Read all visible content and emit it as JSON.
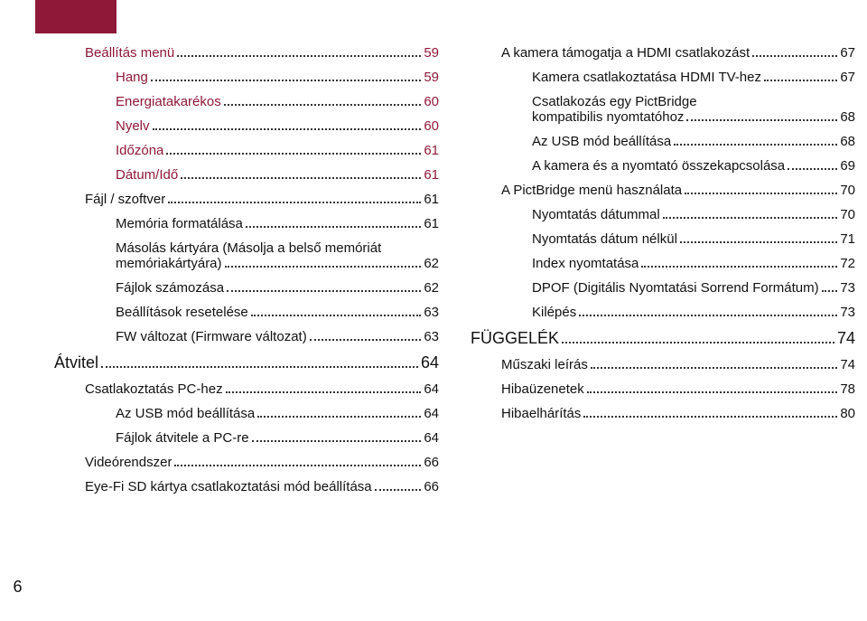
{
  "pageNumber": "6",
  "colors": {
    "accent": "#8f1838",
    "text": "#111111",
    "background": "#ffffff"
  },
  "toc": {
    "left": [
      {
        "level": 2,
        "title": "Beállítás menü",
        "page": "59",
        "red": true
      },
      {
        "level": 3,
        "title": "Hang",
        "page": "59",
        "red": true
      },
      {
        "level": 3,
        "title": "Energiatakarékos",
        "page": "60",
        "red": true
      },
      {
        "level": 3,
        "title": "Nyelv",
        "page": "60",
        "red": true
      },
      {
        "level": 3,
        "title": "Időzóna",
        "page": "61",
        "red": true
      },
      {
        "level": 3,
        "title": "Dátum/Idő",
        "page": "61",
        "red": true
      },
      {
        "level": 2,
        "title": "Fájl / szoftver",
        "page": "61"
      },
      {
        "level": 3,
        "title": "Memória formatálása",
        "page": "61"
      },
      {
        "level": 3,
        "title": "Másolás kártyára (Másolja a belső memóriát",
        "title2": "memóriakártyára)",
        "page": "62",
        "wrap": true
      },
      {
        "level": 3,
        "title": "Fájlok számozása",
        "page": "62"
      },
      {
        "level": 3,
        "title": "Beállítások resetelése",
        "page": "63"
      },
      {
        "level": 3,
        "title": "FW változat (Firmware változat)",
        "page": "63"
      },
      {
        "level": 0,
        "title": "Átvitel",
        "page": "64"
      },
      {
        "level": 2,
        "title": "Csatlakoztatás PC-hez",
        "page": "64"
      },
      {
        "level": 3,
        "title": "Az USB mód beállítása",
        "page": "64"
      },
      {
        "level": 3,
        "title": "Fájlok átvitele a PC-re",
        "page": "64"
      },
      {
        "level": 2,
        "title": "Videórendszer",
        "page": "66"
      },
      {
        "level": 2,
        "title": "Eye-Fi SD kártya csatlakoztatási mód beállítása",
        "page": "66"
      }
    ],
    "right": [
      {
        "level": 2,
        "title": "A kamera támogatja a HDMI csatlakozást",
        "page": "67"
      },
      {
        "level": 3,
        "title": "Kamera csatlakoztatása HDMI TV-hez",
        "page": "67"
      },
      {
        "level": 3,
        "title": "Csatlakozás egy PictBridge",
        "title2": "kompatibilis nyomtatóhoz",
        "page": "68",
        "wrap": true
      },
      {
        "level": 3,
        "title": "Az USB mód beállítása",
        "page": "68"
      },
      {
        "level": 3,
        "title": "A kamera és a nyomtató összekapcsolása",
        "page": "69"
      },
      {
        "level": 2,
        "title": "A PictBridge menü használata",
        "page": "70"
      },
      {
        "level": 3,
        "title": "Nyomtatás dátummal",
        "page": "70"
      },
      {
        "level": 3,
        "title": "Nyomtatás dátum nélkül",
        "page": "71"
      },
      {
        "level": 3,
        "title": "Index nyomtatása",
        "page": "72"
      },
      {
        "level": 3,
        "title": "DPOF (Digitális Nyomtatási Sorrend Formátum)",
        "page": "73"
      },
      {
        "level": 3,
        "title": "Kilépés",
        "page": "73"
      },
      {
        "level": 0,
        "title": "FÜGGELÉK",
        "page": "74"
      },
      {
        "level": 2,
        "title": "Műszaki leírás",
        "page": "74"
      },
      {
        "level": 2,
        "title": "Hibaüzenetek",
        "page": "78"
      },
      {
        "level": 2,
        "title": "Hibaelhárítás",
        "page": "80"
      }
    ]
  }
}
